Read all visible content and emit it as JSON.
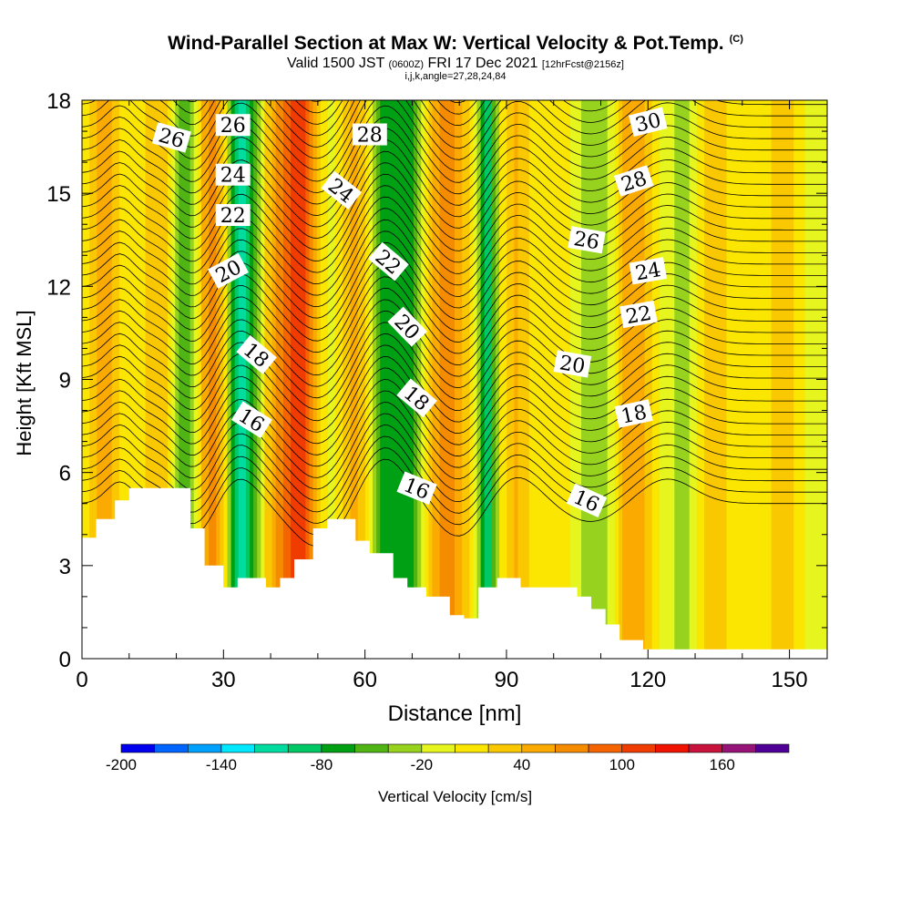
{
  "header": {
    "title": "Wind-Parallel Section at Max W: Vertical Velocity & Pot.Temp.",
    "title_mark": "(C)",
    "valid_prefix": "Valid 1500 JST",
    "valid_utc": "(0600Z)",
    "valid_date": "FRI 17 Dec 2021",
    "forecast_note": "[12hrFcst@2156z]",
    "indices": "i,j,k,angle=27,28,24,84"
  },
  "chart_data": {
    "type": "heatmap",
    "xlabel": "Distance [nm]",
    "ylabel": "Height [Kft MSL]",
    "xlim": [
      0,
      158
    ],
    "ylim": [
      0,
      18
    ],
    "xticks": [
      0,
      30,
      60,
      90,
      120,
      150
    ],
    "yticks": [
      0,
      3,
      6,
      9,
      12,
      15,
      18
    ],
    "colorbar": {
      "label": "Vertical Velocity [cm/s]",
      "levels": [
        -200,
        -180,
        -160,
        -140,
        -120,
        -100,
        -80,
        -60,
        -40,
        -20,
        0,
        20,
        40,
        60,
        80,
        100,
        120,
        140,
        160,
        180
      ],
      "tick_labels": [
        "-200",
        "-140",
        "-80",
        "-20",
        "40",
        "100",
        "160"
      ],
      "colors": [
        "#0000ee",
        "#0064ff",
        "#00a0ff",
        "#00e8ff",
        "#00dca0",
        "#00c864",
        "#00a014",
        "#50b414",
        "#96d21e",
        "#e6f51e",
        "#fae600",
        "#fac800",
        "#faaa00",
        "#f58c00",
        "#f56400",
        "#f03c00",
        "#f01400",
        "#c8143c",
        "#961478",
        "#500096"
      ]
    },
    "velocity_bands": [
      {
        "x": 0,
        "w": 3,
        "v": 10
      },
      {
        "x": 5,
        "w": 3,
        "v": 50
      },
      {
        "x": 11,
        "w": 4,
        "v": -5
      },
      {
        "x": 16,
        "w": 4,
        "v": 40
      },
      {
        "x": 22,
        "w": 3,
        "v": -60
      },
      {
        "x": 28,
        "w": 4,
        "v": 80
      },
      {
        "x": 34,
        "w": 4,
        "v": -120
      },
      {
        "x": 40,
        "w": 4,
        "v": 40
      },
      {
        "x": 46,
        "w": 4,
        "v": 110
      },
      {
        "x": 53,
        "w": 3,
        "v": -20
      },
      {
        "x": 58,
        "w": 4,
        "v": 50
      },
      {
        "x": 63,
        "w": 3,
        "v": -60
      },
      {
        "x": 69,
        "w": 4,
        "v": -70
      },
      {
        "x": 77,
        "w": 4,
        "v": 70
      },
      {
        "x": 82,
        "w": 3,
        "v": 10
      },
      {
        "x": 86,
        "w": 2,
        "v": -90
      },
      {
        "x": 92,
        "w": 3,
        "v": 40
      },
      {
        "x": 100,
        "w": 4,
        "v": 10
      },
      {
        "x": 109,
        "w": 4,
        "v": -40
      },
      {
        "x": 117,
        "w": 4,
        "v": 60
      },
      {
        "x": 127,
        "w": 4,
        "v": -25
      },
      {
        "x": 134,
        "w": 3,
        "v": 40
      },
      {
        "x": 140,
        "w": 3,
        "v": 0
      },
      {
        "x": 149,
        "w": 4,
        "v": 30
      },
      {
        "x": 155,
        "w": 3,
        "v": -10
      }
    ],
    "terrain": [
      [
        0,
        3.9
      ],
      [
        3,
        4.5
      ],
      [
        7,
        5.1
      ],
      [
        10,
        5.5
      ],
      [
        19,
        5.5
      ],
      [
        23,
        4.2
      ],
      [
        26,
        3.0
      ],
      [
        30,
        2.3
      ],
      [
        33,
        2.6
      ],
      [
        39,
        2.3
      ],
      [
        42,
        2.6
      ],
      [
        45,
        3.2
      ],
      [
        49,
        4.2
      ],
      [
        52,
        4.5
      ],
      [
        58,
        3.8
      ],
      [
        61,
        3.4
      ],
      [
        66,
        2.6
      ],
      [
        69,
        2.3
      ],
      [
        73,
        2.0
      ],
      [
        78,
        1.4
      ],
      [
        81,
        1.3
      ],
      [
        84,
        2.3
      ],
      [
        88,
        2.6
      ],
      [
        93,
        2.3
      ],
      [
        100,
        2.3
      ],
      [
        105,
        2.0
      ],
      [
        108,
        1.6
      ],
      [
        111,
        1.1
      ],
      [
        114,
        0.6
      ],
      [
        119,
        0.3
      ],
      [
        158,
        0.3
      ]
    ],
    "isentropes": {
      "start_K": 8,
      "step_K": 0.5,
      "count": 44,
      "base_ft": 5000,
      "lapse_ft_per_K": 735,
      "waves": [
        {
          "center": 8,
          "width": 4,
          "amp_ft": 700
        },
        {
          "center": 24,
          "width": 6,
          "amp_ft": -1100
        },
        {
          "center": 33,
          "width": 6,
          "amp_ft": 900
        },
        {
          "center": 50,
          "width": 8,
          "amp_ft": -1400
        },
        {
          "center": 64,
          "width": 7,
          "amp_ft": 1500
        },
        {
          "center": 80,
          "width": 7,
          "amp_ft": -1100
        },
        {
          "center": 92,
          "width": 7,
          "amp_ft": 900
        },
        {
          "center": 108,
          "width": 8,
          "amp_ft": -600
        },
        {
          "center": 124,
          "width": 8,
          "amp_ft": 800
        }
      ]
    },
    "contour_labels": [
      {
        "text": "26",
        "x": 19,
        "y": 16.8,
        "angle": 16
      },
      {
        "text": "26",
        "x": 32,
        "y": 17.2,
        "angle": 0
      },
      {
        "text": "24",
        "x": 32,
        "y": 15.6,
        "angle": 0
      },
      {
        "text": "22",
        "x": 32,
        "y": 14.3,
        "angle": 0
      },
      {
        "text": "20",
        "x": 31,
        "y": 12.5,
        "angle": -28
      },
      {
        "text": "18",
        "x": 37,
        "y": 9.8,
        "angle": 40
      },
      {
        "text": "16",
        "x": 36,
        "y": 7.7,
        "angle": 32
      },
      {
        "text": "28",
        "x": 61,
        "y": 16.9,
        "angle": 0
      },
      {
        "text": "24",
        "x": 55,
        "y": 15.1,
        "angle": 38
      },
      {
        "text": "22",
        "x": 65,
        "y": 12.8,
        "angle": 40
      },
      {
        "text": "20",
        "x": 69,
        "y": 10.7,
        "angle": 46
      },
      {
        "text": "18",
        "x": 71,
        "y": 8.4,
        "angle": 40
      },
      {
        "text": "16",
        "x": 71,
        "y": 5.5,
        "angle": 22
      },
      {
        "text": "30",
        "x": 120,
        "y": 17.3,
        "angle": -14
      },
      {
        "text": "28",
        "x": 117,
        "y": 15.4,
        "angle": -18
      },
      {
        "text": "26",
        "x": 107,
        "y": 13.5,
        "angle": 10
      },
      {
        "text": "24",
        "x": 120,
        "y": 12.5,
        "angle": -10
      },
      {
        "text": "22",
        "x": 118,
        "y": 11.1,
        "angle": -10
      },
      {
        "text": "20",
        "x": 104,
        "y": 9.5,
        "angle": 10
      },
      {
        "text": "18",
        "x": 117,
        "y": 7.9,
        "angle": -12
      },
      {
        "text": "16",
        "x": 107,
        "y": 5.1,
        "angle": 24
      }
    ]
  }
}
